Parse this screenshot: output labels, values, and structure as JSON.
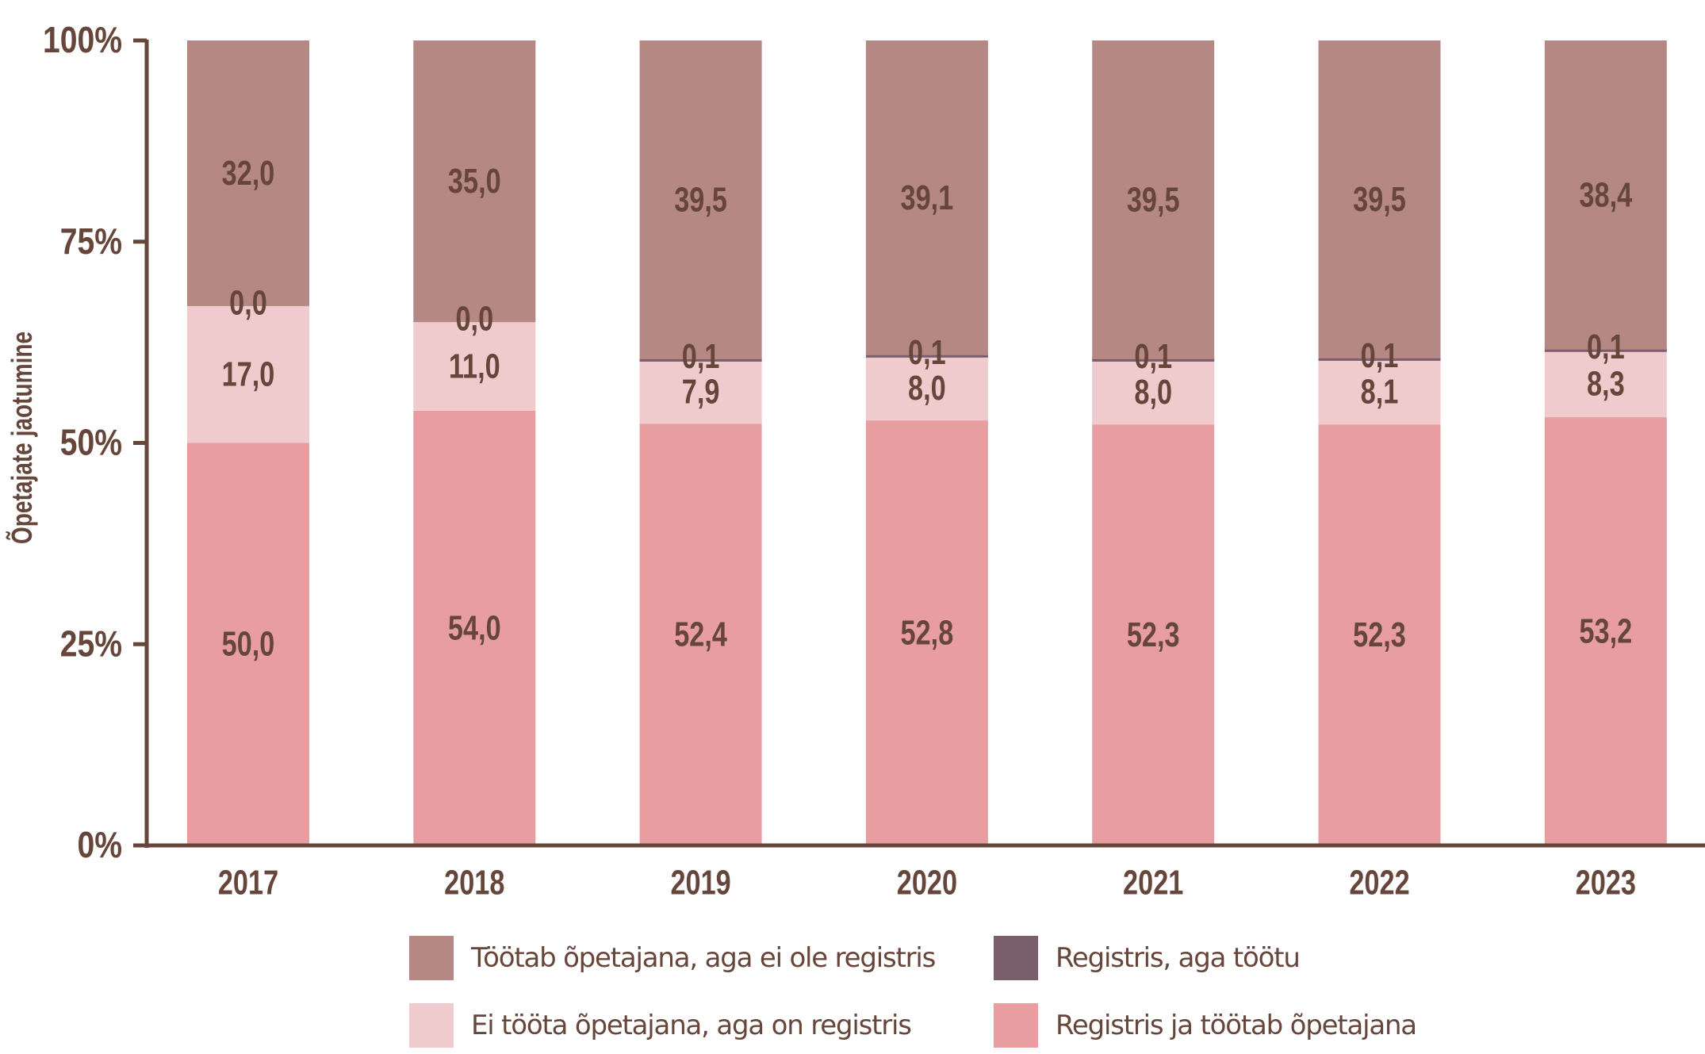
{
  "chart_data": {
    "type": "bar",
    "stacked": true,
    "title": "",
    "xlabel": "",
    "ylabel": "Õpetajate jaotumine",
    "ylim": [
      0,
      100
    ],
    "yticks": [
      "0%",
      "25%",
      "50%",
      "75%",
      "100%"
    ],
    "ytick_values": [
      0,
      25,
      50,
      75,
      100
    ],
    "categories": [
      "2017",
      "2018",
      "2019",
      "2020",
      "2021",
      "2022",
      "2023"
    ],
    "series": [
      {
        "name": "Registris ja töötab õpetajana",
        "color": "#e89ea1",
        "values": [
          50.0,
          54.0,
          52.4,
          52.8,
          52.3,
          52.3,
          53.2
        ],
        "labels": [
          "50,0",
          "54,0",
          "52,4",
          "52,8",
          "52,3",
          "52,3",
          "53,2"
        ]
      },
      {
        "name": "Ei tööta õpetajana, aga on registris",
        "color": "#efcbcd",
        "values": [
          17.0,
          11.0,
          7.9,
          8.0,
          8.0,
          8.1,
          8.3
        ],
        "labels": [
          "17,0",
          "11,0",
          "7,9",
          "8,0",
          "8,0",
          "8,1",
          "8,3"
        ]
      },
      {
        "name": "Registris, aga töötu",
        "color": "#7b5e6b",
        "values": [
          0.0,
          0.0,
          0.1,
          0.1,
          0.1,
          0.1,
          0.1
        ],
        "labels": [
          "0,0",
          "0,0",
          "0,1",
          "0,1",
          "0,1",
          "0,1",
          "0,1"
        ]
      },
      {
        "name": "Töötab õpetajana, aga ei ole registris",
        "color": "#b58883",
        "values": [
          32.0,
          35.0,
          39.5,
          39.1,
          39.5,
          39.5,
          38.4
        ],
        "labels": [
          "32,0",
          "35,0",
          "39,5",
          "39,1",
          "39,5",
          "39,5",
          "38,4"
        ]
      }
    ],
    "legend": {
      "position": "bottom",
      "items": [
        {
          "name": "Töötab õpetajana, aga ei ole registris",
          "color": "#b58883"
        },
        {
          "name": "Registris, aga töötu",
          "color": "#7b5e6b"
        },
        {
          "name": "Ei tööta õpetajana, aga on registris",
          "color": "#efcbcd"
        },
        {
          "name": "Registris ja töötab õpetajana",
          "color": "#e89ea1"
        }
      ]
    },
    "text_color": "#66463b"
  }
}
